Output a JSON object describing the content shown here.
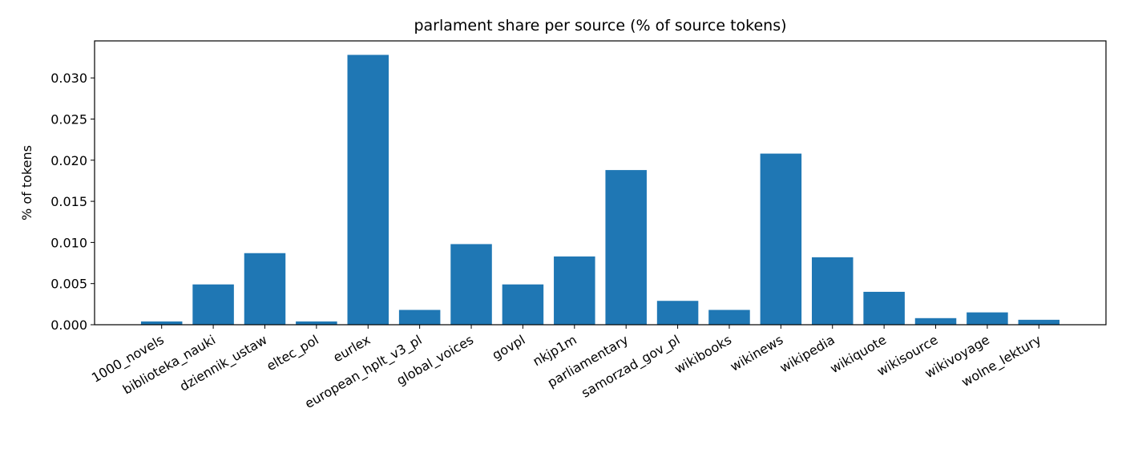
{
  "chart_data": {
    "type": "bar",
    "title": "parlament share per source (% of source tokens)",
    "y_label": "% of tokens",
    "categories": [
      "1000_novels",
      "biblioteka_nauki",
      "dziennik_ustaw",
      "eltec_pol",
      "eurlex",
      "european_hplt_v3_pl",
      "global_voices",
      "govpl",
      "nkjp1m",
      "parliamentary",
      "samorzad_gov_pl",
      "wikibooks",
      "wikinews",
      "wikipedia",
      "wikiquote",
      "wikisource",
      "wikivoyage",
      "wolne_lektury"
    ],
    "values": [
      0.0004,
      0.0049,
      0.0087,
      0.0004,
      0.0328,
      0.0018,
      0.0098,
      0.0049,
      0.0083,
      0.0188,
      0.0029,
      0.0018,
      0.0208,
      0.0082,
      0.004,
      0.0008,
      0.0015,
      0.0006
    ],
    "color": "#1f77b4",
    "ylim": [
      0,
      0.0345
    ],
    "yticks": [
      {
        "value": 0,
        "label": "0.000"
      },
      {
        "value": 0.005,
        "label": "0.005"
      },
      {
        "value": 0.01,
        "label": "0.010"
      },
      {
        "value": 0.015,
        "label": "0.015"
      },
      {
        "value": 0.02,
        "label": "0.020"
      },
      {
        "value": 0.025,
        "label": "0.025"
      },
      {
        "value": 0.03,
        "label": "0.030"
      }
    ],
    "grid": false
  }
}
